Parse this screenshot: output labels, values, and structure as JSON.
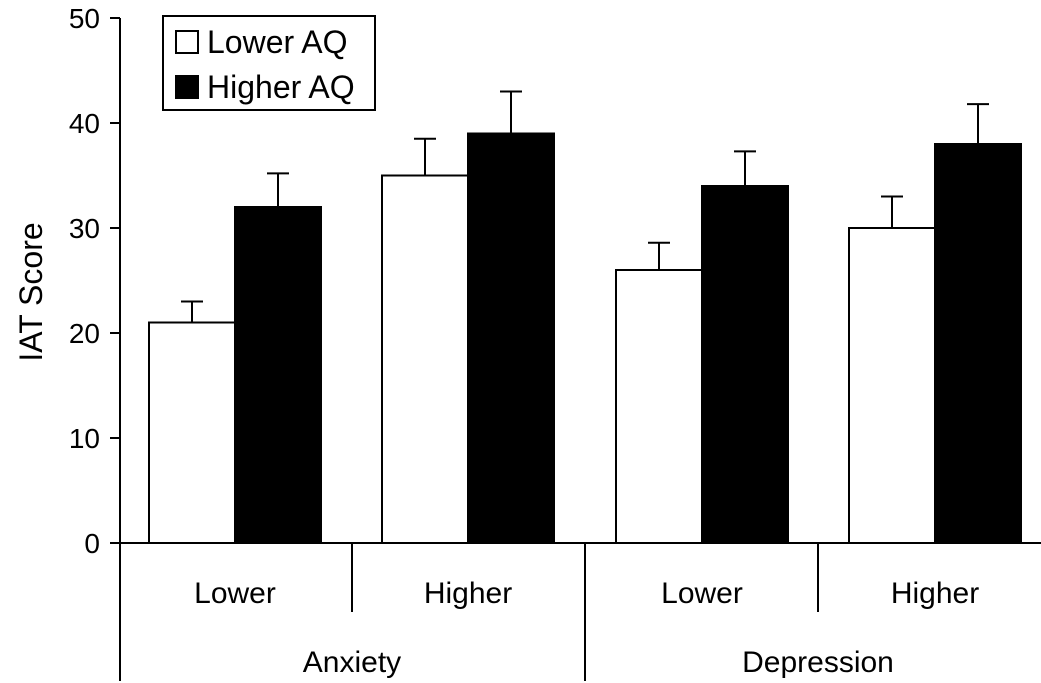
{
  "chart_data": {
    "type": "bar",
    "ylabel": "IAT Score",
    "ylim": [
      0,
      50
    ],
    "yticks": [
      0,
      10,
      20,
      30,
      40,
      50
    ],
    "groups": [
      {
        "label": "Anxiety",
        "categories": [
          "Lower",
          "Higher"
        ]
      },
      {
        "label": "Depression",
        "categories": [
          "Lower",
          "Higher"
        ]
      }
    ],
    "series": [
      {
        "name": "Lower AQ",
        "fill": "#ffffff",
        "values": [
          21,
          35,
          26,
          30
        ],
        "errors": [
          2,
          3.5,
          2.6,
          3
        ]
      },
      {
        "name": "Higher AQ",
        "fill": "#000000",
        "values": [
          32,
          39,
          34,
          38
        ],
        "errors": [
          3.2,
          4,
          3.3,
          3.8
        ]
      }
    ],
    "legend_position": "top-left",
    "grid": false
  }
}
